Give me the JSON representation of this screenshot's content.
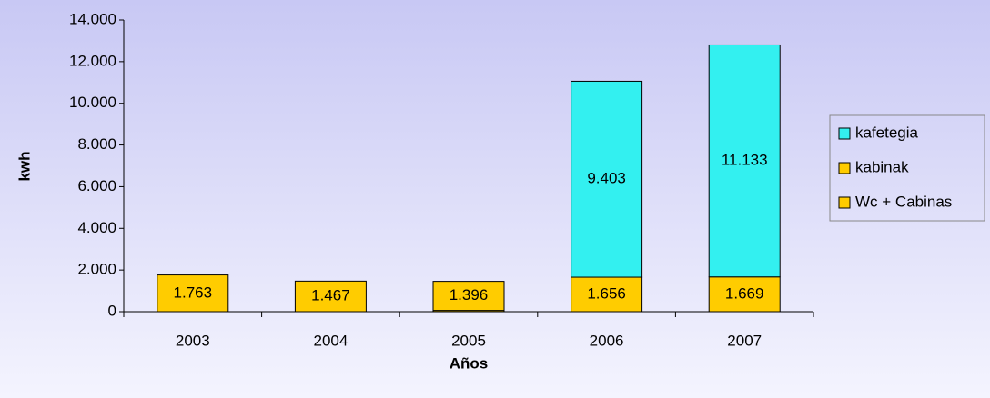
{
  "chart_data": {
    "type": "stacked_bar",
    "x_label": "Años",
    "y_label": "kwh",
    "categories": [
      "2003",
      "2004",
      "2005",
      "2006",
      "2007"
    ],
    "series": [
      {
        "name": "Wc + Cabinas",
        "color": "#ffcc00",
        "values": [
          1763,
          1467,
          60,
          null,
          null
        ],
        "value_labels": [
          "1.763",
          "1.467",
          null,
          null,
          null
        ]
      },
      {
        "name": "kabinak",
        "color": "#ffcc00",
        "values": [
          null,
          null,
          1396,
          1656,
          1669
        ],
        "value_labels": [
          null,
          null,
          "1.396",
          "1.656",
          "1.669"
        ]
      },
      {
        "name": "kafetegia",
        "color": "#33f0f0",
        "values": [
          null,
          null,
          null,
          9403,
          11133
        ],
        "value_labels": [
          null,
          null,
          null,
          "9.403",
          "11.133"
        ]
      }
    ],
    "ylim": [
      0,
      14000
    ],
    "yticks": [
      0,
      {
        "value": 2000,
        "label": "2.000"
      },
      {
        "value": 4000,
        "label": "4.000"
      },
      {
        "value": 6000,
        "label": "6.000"
      },
      {
        "value": 8000,
        "label": "8.000"
      },
      {
        "value": 10000,
        "label": "10.000"
      },
      {
        "value": 12000,
        "label": "12.000"
      },
      {
        "value": 14000,
        "label": "14.000"
      }
    ],
    "legend": "right"
  }
}
